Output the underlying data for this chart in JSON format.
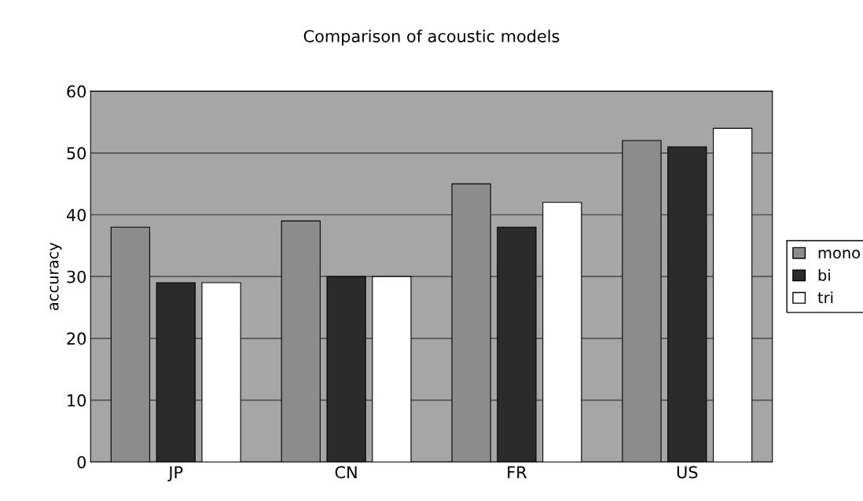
{
  "chart_data": {
    "type": "bar",
    "title": "Comparison of acoustic models",
    "ylabel": "accuracy",
    "categories": [
      "JP",
      "CN",
      "FR",
      "US"
    ],
    "series": [
      {
        "name": "mono",
        "color": "#8c8c8c",
        "values": [
          38,
          39,
          45,
          52
        ]
      },
      {
        "name": "bi",
        "color": "#2b2b2b",
        "values": [
          29,
          30,
          38,
          51
        ]
      },
      {
        "name": "tri",
        "color": "#ffffff",
        "values": [
          29,
          30,
          42,
          54
        ]
      }
    ],
    "ylim": [
      0,
      60
    ],
    "yticks": [
      0,
      10,
      20,
      30,
      40,
      50,
      60
    ],
    "grid": "y",
    "legend": "right"
  }
}
